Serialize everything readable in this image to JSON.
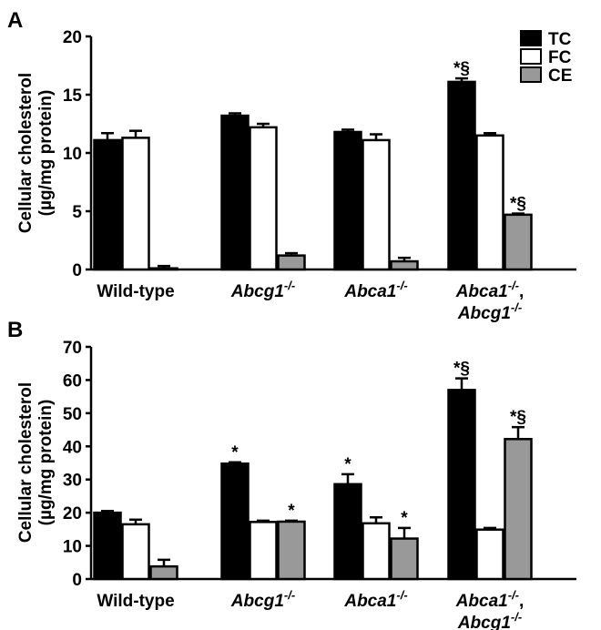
{
  "chart_data": [
    {
      "panel_label": "A",
      "type": "bar",
      "ylabel_line1": "Cellular cholesterol",
      "ylabel_line2": "(µg/mg protein)",
      "ylim": [
        0,
        20
      ],
      "yticks": [
        0,
        5,
        10,
        15,
        20
      ],
      "categories": [
        {
          "main": "Wild-type",
          "sup": "",
          "main2": "",
          "sup2": ""
        },
        {
          "main": "Abcg1",
          "sup": "-/-",
          "main2": "",
          "sup2": ""
        },
        {
          "main": "Abca1",
          "sup": "-/-",
          "main2": "",
          "sup2": ""
        },
        {
          "main": "Abca1",
          "sup": "-/-",
          "suffix": ",",
          "main2": "Abcg1",
          "sup2": "-/-"
        }
      ],
      "series": [
        {
          "name": "TC",
          "color": "#000000",
          "values": [
            11.1,
            13.2,
            11.8,
            16.1
          ],
          "errors": [
            0.6,
            0.2,
            0.2,
            0.3
          ],
          "annotations": [
            "",
            "",
            "",
            "*§"
          ]
        },
        {
          "name": "FC",
          "color": "#ffffff",
          "values": [
            11.3,
            12.2,
            11.1,
            11.5
          ],
          "errors": [
            0.6,
            0.3,
            0.5,
            0.2
          ],
          "annotations": [
            "",
            "",
            "",
            ""
          ]
        },
        {
          "name": "CE",
          "color": "#999999",
          "values": [
            0.1,
            1.2,
            0.7,
            4.7
          ],
          "errors": [
            0.2,
            0.2,
            0.3,
            0.1
          ],
          "annotations": [
            "",
            "",
            "",
            "*§"
          ]
        }
      ],
      "legend": {
        "placement": "top-right",
        "entries": [
          "TC",
          "FC",
          "CE"
        ]
      }
    },
    {
      "panel_label": "B",
      "type": "bar",
      "ylabel_line1": "Cellular cholesterol",
      "ylabel_line2": "(µg/mg protein)",
      "ylim": [
        0,
        70
      ],
      "yticks": [
        0,
        10,
        20,
        30,
        40,
        50,
        60,
        70
      ],
      "categories": [
        {
          "main": "Wild-type",
          "sup": "",
          "main2": "",
          "sup2": ""
        },
        {
          "main": "Abcg1",
          "sup": "-/-",
          "main2": "",
          "sup2": ""
        },
        {
          "main": "Abca1",
          "sup": "-/-",
          "main2": "",
          "sup2": ""
        },
        {
          "main": "Abca1",
          "sup": "-/-",
          "suffix": ",",
          "main2": "Abcg1",
          "sup2": "-/-"
        }
      ],
      "series": [
        {
          "name": "TC",
          "color": "#000000",
          "values": [
            20.0,
            34.8,
            28.6,
            57.0
          ],
          "errors": [
            0.5,
            0.4,
            3.0,
            3.5
          ],
          "annotations": [
            "",
            "*",
            "*",
            "*§"
          ]
        },
        {
          "name": "FC",
          "color": "#ffffff",
          "values": [
            16.5,
            17.2,
            16.8,
            14.9
          ],
          "errors": [
            1.4,
            0.4,
            1.8,
            0.5
          ],
          "annotations": [
            "",
            "",
            "",
            ""
          ]
        },
        {
          "name": "CE",
          "color": "#999999",
          "values": [
            3.8,
            17.3,
            12.2,
            42.2
          ],
          "errors": [
            2.0,
            0.3,
            3.2,
            3.6
          ],
          "annotations": [
            "",
            "*",
            "*",
            "*§"
          ]
        }
      ]
    }
  ]
}
